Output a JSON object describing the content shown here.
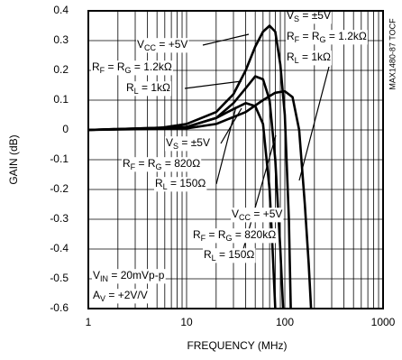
{
  "chart_data": {
    "type": "line",
    "xlabel": "FREQUENCY (MHz)",
    "ylabel": "GAIN (dB)",
    "side_note": "MAX1480-87 TOCF",
    "xscale": "log",
    "grid": true,
    "xlim": [
      1,
      1000
    ],
    "xticks": [
      1,
      10,
      100,
      1000
    ],
    "ylim": [
      -0.6,
      0.4
    ],
    "yticks": [
      0.4,
      0.3,
      0.2,
      0.1,
      0,
      -0.1,
      -0.2,
      -0.3,
      -0.4,
      -0.5,
      -0.6
    ],
    "series": [
      {
        "color": "#000000",
        "x": [
          1,
          5,
          10,
          20,
          30,
          40,
          50,
          60,
          70,
          80,
          90,
          100,
          110,
          115
        ],
        "values": [
          0,
          0.005,
          0.02,
          0.06,
          0.12,
          0.2,
          0.28,
          0.33,
          0.35,
          0.33,
          0.22,
          0.05,
          -0.3,
          -0.6
        ]
      },
      {
        "color": "#000000",
        "x": [
          1,
          10,
          20,
          30,
          40,
          50,
          60,
          70,
          80,
          90,
          96
        ],
        "values": [
          0,
          0.01,
          0.04,
          0.09,
          0.14,
          0.18,
          0.17,
          0.1,
          -0.1,
          -0.4,
          -0.6
        ]
      },
      {
        "color": "#000000",
        "x": [
          1,
          10,
          20,
          40,
          60,
          80,
          100,
          120,
          140,
          160,
          175,
          185
        ],
        "values": [
          0,
          0.005,
          0.02,
          0.06,
          0.1,
          0.125,
          0.13,
          0.11,
          0,
          -0.25,
          -0.45,
          -0.6
        ]
      },
      {
        "color": "#000000",
        "x": [
          1,
          10,
          20,
          30,
          40,
          50,
          60,
          70,
          75,
          80
        ],
        "values": [
          0,
          0.01,
          0.04,
          0.07,
          0.09,
          0.08,
          0.02,
          -0.2,
          -0.4,
          -0.6
        ]
      }
    ],
    "annotations": [
      [
        "V",
        "CC",
        " = +5V"
      ],
      [
        "R",
        "F",
        " = R",
        "G",
        " = 1.2kΩ"
      ],
      [
        "R",
        "L",
        " = 1kΩ"
      ],
      [
        "V",
        "S",
        " =  ±5V"
      ],
      [
        "R",
        "F",
        " = R",
        "G",
        " = 1.2kΩ"
      ],
      [
        "R",
        "L",
        " = 1kΩ"
      ],
      [
        "V",
        "S",
        " = ±5V"
      ],
      [
        "R",
        "F",
        " = R",
        "G",
        " = 820Ω"
      ],
      [
        "R",
        "L",
        " = 150Ω"
      ],
      [
        "V",
        "CC",
        " = +5V"
      ],
      [
        "R",
        "F",
        " = R",
        "G",
        " = 820kΩ"
      ],
      [
        "R",
        "L",
        " = 150Ω"
      ],
      [
        "V",
        "IN",
        " = 20mVp-p"
      ],
      [
        "A",
        "V",
        " = +2V/V"
      ]
    ]
  }
}
